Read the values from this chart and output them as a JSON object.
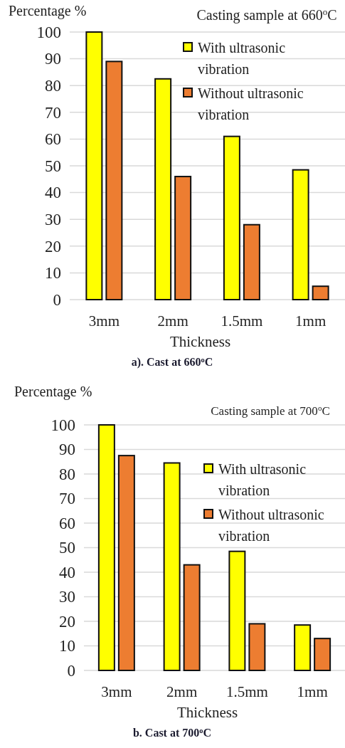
{
  "chart_data": [
    {
      "type": "bar",
      "title": "Casting sample at 660$^{o}$C",
      "ylabel": "Percentage %",
      "xlabel": "Thickness",
      "annotations": [
        "a). Cast at 660$^{o}$C"
      ],
      "categories": [
        "3mm",
        "2mm",
        "1.5mm",
        "1mm"
      ],
      "series": [
        {
          "name": "With ultrasonic vibration",
          "color": "#ffff00",
          "values": [
            100,
            82.5,
            61,
            48.5
          ]
        },
        {
          "name": "Without ultrasonic vibration",
          "color": "#ed7d31",
          "values": [
            89,
            46,
            28,
            5
          ]
        }
      ],
      "ylim": [
        0,
        100
      ],
      "yticks": [
        0,
        10,
        20,
        30,
        40,
        50,
        60,
        70,
        80,
        90,
        100
      ],
      "grid": "y",
      "legend": "top right"
    },
    {
      "type": "bar",
      "title": "Casting sample at 700$^{o}$C",
      "ylabel": "Percentage %",
      "xlabel": "Thickness",
      "annotations": [
        "b. Cast at 700$^{o}$C"
      ],
      "categories": [
        "3mm",
        "2mm",
        "1.5mm",
        "1mm"
      ],
      "series": [
        {
          "name": "With ultrasonic vibration",
          "color": "#ffff00",
          "values": [
            100,
            84.5,
            48.5,
            18.5
          ]
        },
        {
          "name": "Without ultrasonic vibration",
          "color": "#ed7d31",
          "values": [
            87.5,
            43,
            19,
            13
          ]
        }
      ],
      "ylim": [
        0,
        100
      ],
      "yticks": [
        0,
        10,
        20,
        30,
        40,
        50,
        60,
        70,
        80,
        90,
        100
      ],
      "grid": "y",
      "legend": "top right"
    }
  ]
}
